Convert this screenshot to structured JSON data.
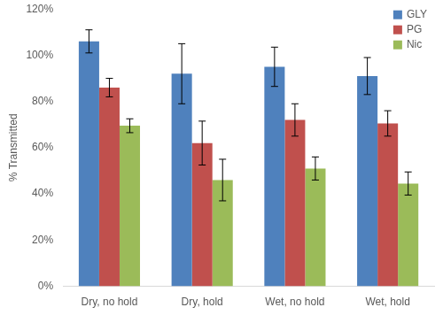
{
  "chart_data": {
    "type": "bar",
    "categories": [
      "Dry, no hold",
      "Dry, hold",
      "Wet, no hold",
      "Wet, hold"
    ],
    "series": [
      {
        "name": "GLY",
        "color": "#4f81bd",
        "values": [
          106,
          92,
          95,
          91
        ],
        "errors": [
          5,
          13,
          8.5,
          8
        ]
      },
      {
        "name": "PG",
        "color": "#c0504d",
        "values": [
          86,
          62,
          72,
          70.5
        ],
        "errors": [
          4,
          9.5,
          7,
          5.5
        ]
      },
      {
        "name": "Nic",
        "color": "#9bbb59",
        "values": [
          69.5,
          46,
          51,
          44.5
        ],
        "errors": [
          3,
          9,
          5,
          5
        ]
      }
    ],
    "y_label": "% Transmitted",
    "ylim": [
      0,
      120
    ],
    "yticks": [
      {
        "value": 0,
        "label": "0%"
      },
      {
        "value": 20,
        "label": "20%"
      },
      {
        "value": 40,
        "label": "40%"
      },
      {
        "value": 60,
        "label": "60%"
      },
      {
        "value": 80,
        "label": "80%"
      },
      {
        "value": 100,
        "label": "100%"
      },
      {
        "value": 120,
        "label": "120%"
      }
    ],
    "grid": false,
    "legend": "upper right"
  }
}
